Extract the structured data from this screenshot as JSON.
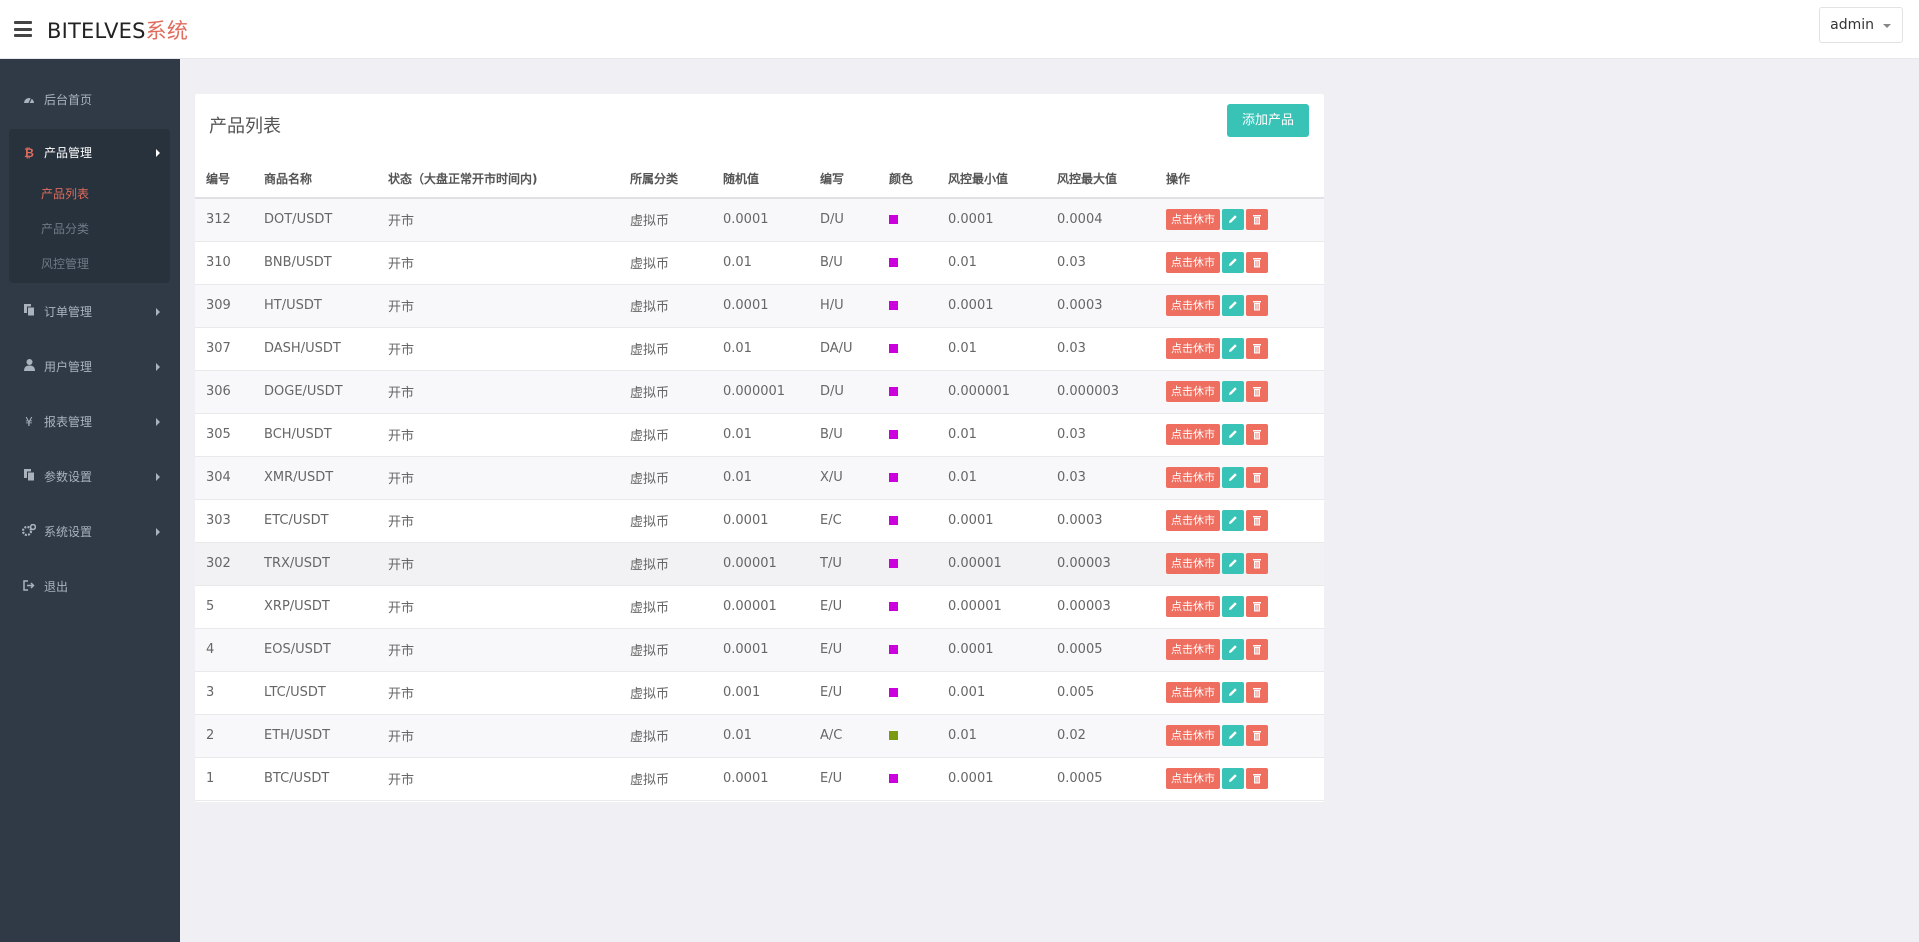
{
  "header": {
    "brand_main": "BITELVES",
    "brand_accent": "系统",
    "user": "admin"
  },
  "sidebar": {
    "items": [
      {
        "label": "后台首页",
        "icon": "dashboard-icon"
      },
      {
        "label": "产品管理",
        "icon": "bitcoin-icon"
      },
      {
        "label": "订单管理",
        "icon": "copy-icon"
      },
      {
        "label": "用户管理",
        "icon": "user-icon"
      },
      {
        "label": "报表管理",
        "icon": "yen-icon"
      },
      {
        "label": "参数设置",
        "icon": "copy-icon"
      },
      {
        "label": "系统设置",
        "icon": "gears-icon"
      },
      {
        "label": "退出",
        "icon": "sign-out-icon"
      }
    ],
    "sub_items": [
      "产品列表",
      "产品分类",
      "风控管理"
    ]
  },
  "panel": {
    "title": "产品列表",
    "add_button": "添加产品"
  },
  "table": {
    "columns": [
      "编号",
      "商品名称",
      "状态（大盘正常开市时间内)",
      "所属分类",
      "随机值",
      "编写",
      "颜色",
      "风控最小值",
      "风控最大值",
      "操作"
    ],
    "action_label": "点击休市",
    "rows": [
      {
        "id": "312",
        "name": "DOT/USDT",
        "status": "开市",
        "category": "虚拟币",
        "random": "0.0001",
        "code": "D/U",
        "color": "#cc00dd",
        "min": "0.0001",
        "max": "0.0004"
      },
      {
        "id": "310",
        "name": "BNB/USDT",
        "status": "开市",
        "category": "虚拟币",
        "random": "0.01",
        "code": "B/U",
        "color": "#cc00dd",
        "min": "0.01",
        "max": "0.03"
      },
      {
        "id": "309",
        "name": "HT/USDT",
        "status": "开市",
        "category": "虚拟币",
        "random": "0.0001",
        "code": "H/U",
        "color": "#cc00dd",
        "min": "0.0001",
        "max": "0.0003"
      },
      {
        "id": "307",
        "name": "DASH/USDT",
        "status": "开市",
        "category": "虚拟币",
        "random": "0.01",
        "code": "DA/U",
        "color": "#cc00dd",
        "min": "0.01",
        "max": "0.03"
      },
      {
        "id": "306",
        "name": "DOGE/USDT",
        "status": "开市",
        "category": "虚拟币",
        "random": "0.000001",
        "code": "D/U",
        "color": "#cc00dd",
        "min": "0.000001",
        "max": "0.000003"
      },
      {
        "id": "305",
        "name": "BCH/USDT",
        "status": "开市",
        "category": "虚拟币",
        "random": "0.01",
        "code": "B/U",
        "color": "#cc00dd",
        "min": "0.01",
        "max": "0.03"
      },
      {
        "id": "304",
        "name": "XMR/USDT",
        "status": "开市",
        "category": "虚拟币",
        "random": "0.01",
        "code": "X/U",
        "color": "#cc00dd",
        "min": "0.01",
        "max": "0.03"
      },
      {
        "id": "303",
        "name": "ETC/USDT",
        "status": "开市",
        "category": "虚拟币",
        "random": "0.0001",
        "code": "E/C",
        "color": "#cc00dd",
        "min": "0.0001",
        "max": "0.0003"
      },
      {
        "id": "302",
        "name": "TRX/USDT",
        "status": "开市",
        "category": "虚拟币",
        "random": "0.00001",
        "code": "T/U",
        "color": "#cc00dd",
        "min": "0.00001",
        "max": "0.00003"
      },
      {
        "id": "5",
        "name": "XRP/USDT",
        "status": "开市",
        "category": "虚拟币",
        "random": "0.00001",
        "code": "E/U",
        "color": "#cc00dd",
        "min": "0.00001",
        "max": "0.00003"
      },
      {
        "id": "4",
        "name": "EOS/USDT",
        "status": "开市",
        "category": "虚拟币",
        "random": "0.0001",
        "code": "E/U",
        "color": "#cc00dd",
        "min": "0.0001",
        "max": "0.0005"
      },
      {
        "id": "3",
        "name": "LTC/USDT",
        "status": "开市",
        "category": "虚拟币",
        "random": "0.001",
        "code": "E/U",
        "color": "#cc00dd",
        "min": "0.001",
        "max": "0.005"
      },
      {
        "id": "2",
        "name": "ETH/USDT",
        "status": "开市",
        "category": "虚拟币",
        "random": "0.01",
        "code": "A/C",
        "color": "#7a9a10",
        "min": "0.01",
        "max": "0.02"
      },
      {
        "id": "1",
        "name": "BTC/USDT",
        "status": "开市",
        "category": "虚拟币",
        "random": "0.0001",
        "code": "E/U",
        "color": "#cc00dd",
        "min": "0.0001",
        "max": "0.0005"
      }
    ]
  }
}
